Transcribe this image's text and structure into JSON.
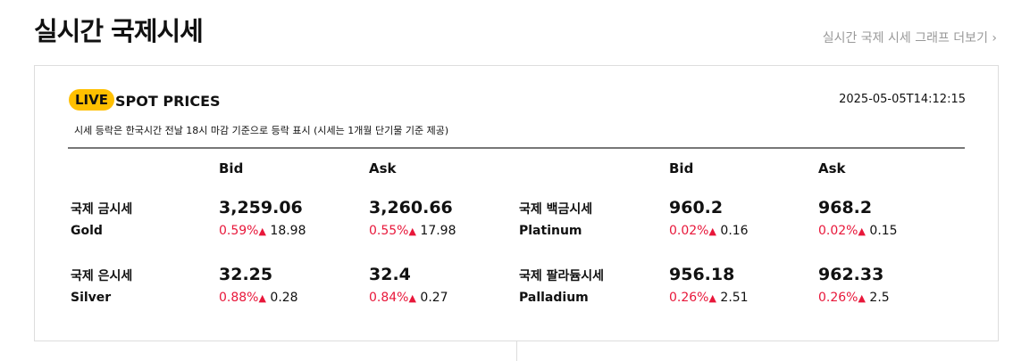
{
  "header": {
    "title": "실시간 국제시세",
    "more_link": "실시간 국제 시세 그래프 더보기 ›"
  },
  "panel": {
    "live_badge": "LIVE",
    "title": "SPOT PRICES",
    "timestamp": "2025-05-05T14:12:15",
    "note": "시세 등락은 한국시간 전날 18시 마감 기준으로 등락 표시 (시세는 1개월 단기물 기준 제공)",
    "col_bid": "Bid",
    "col_ask": "Ask",
    "metals": [
      {
        "ko": "국제 금시세",
        "en": "Gold",
        "bid": "3,259.06",
        "bid_pct": "0.59%",
        "bid_chg": "18.98",
        "ask": "3,260.66",
        "ask_pct": "0.55%",
        "ask_chg": "17.98"
      },
      {
        "ko": "국제 은시세",
        "en": "Silver",
        "bid": "32.25",
        "bid_pct": "0.88%",
        "bid_chg": "0.28",
        "ask": "32.4",
        "ask_pct": "0.84%",
        "ask_chg": "0.27"
      },
      {
        "ko": "국제 백금시세",
        "en": "Platinum",
        "bid": "960.2",
        "bid_pct": "0.02%",
        "bid_chg": "0.16",
        "ask": "968.2",
        "ask_pct": "0.02%",
        "ask_chg": "0.15"
      },
      {
        "ko": "국제 팔라듐시세",
        "en": "Palladium",
        "bid": "956.18",
        "bid_pct": "0.26%",
        "bid_chg": "2.51",
        "ask": "962.33",
        "ask_pct": "0.26%",
        "ask_chg": "2.5"
      }
    ],
    "up_arrow": "▲"
  },
  "colors": {
    "accent": "#ffc000",
    "up": "#e8173a"
  }
}
